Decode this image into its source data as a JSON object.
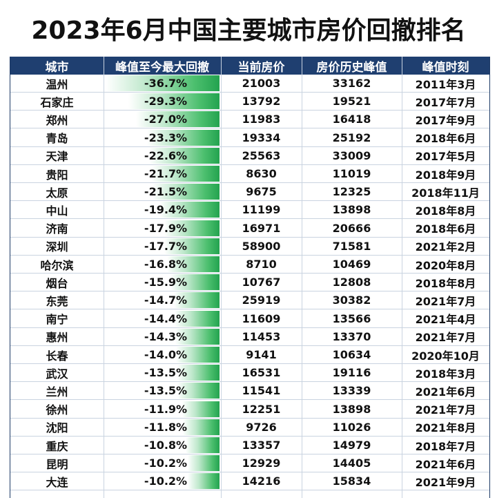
{
  "title": "2023年6月中国主要城市房价回撤排名",
  "headers": [
    "城市",
    "峰值至今最大回撤",
    "当前房价",
    "房价历史峰值",
    "峰值时刻"
  ],
  "chart_data": {
    "type": "table",
    "columns": [
      "城市",
      "峰值至今最大回撤",
      "当前房价",
      "房价历史峰值",
      "峰值时刻"
    ],
    "rows": [
      {
        "city": "温州",
        "drawdown": -36.7,
        "drawdown_label": "-36.7%",
        "current": "21003",
        "peak": "33162",
        "peak_time": "2011年3月"
      },
      {
        "city": "石家庄",
        "drawdown": -29.3,
        "drawdown_label": "-29.3%",
        "current": "13792",
        "peak": "19521",
        "peak_time": "2017年7月"
      },
      {
        "city": "郑州",
        "drawdown": -27.0,
        "drawdown_label": "-27.0%",
        "current": "11983",
        "peak": "16418",
        "peak_time": "2017年9月"
      },
      {
        "city": "青岛",
        "drawdown": -23.3,
        "drawdown_label": "-23.3%",
        "current": "19334",
        "peak": "25192",
        "peak_time": "2018年6月"
      },
      {
        "city": "天津",
        "drawdown": -22.6,
        "drawdown_label": "-22.6%",
        "current": "25563",
        "peak": "33009",
        "peak_time": "2017年5月"
      },
      {
        "city": "贵阳",
        "drawdown": -21.7,
        "drawdown_label": "-21.7%",
        "current": "8630",
        "peak": "11019",
        "peak_time": "2018年9月"
      },
      {
        "city": "太原",
        "drawdown": -21.5,
        "drawdown_label": "-21.5%",
        "current": "9675",
        "peak": "12325",
        "peak_time": "2018年11月"
      },
      {
        "city": "中山",
        "drawdown": -19.4,
        "drawdown_label": "-19.4%",
        "current": "11199",
        "peak": "13898",
        "peak_time": "2018年8月"
      },
      {
        "city": "济南",
        "drawdown": -17.9,
        "drawdown_label": "-17.9%",
        "current": "16971",
        "peak": "20666",
        "peak_time": "2018年6月"
      },
      {
        "city": "深圳",
        "drawdown": -17.7,
        "drawdown_label": "-17.7%",
        "current": "58900",
        "peak": "71581",
        "peak_time": "2021年2月"
      },
      {
        "city": "哈尔滨",
        "drawdown": -16.8,
        "drawdown_label": "-16.8%",
        "current": "8710",
        "peak": "10469",
        "peak_time": "2020年8月"
      },
      {
        "city": "烟台",
        "drawdown": -15.9,
        "drawdown_label": "-15.9%",
        "current": "10767",
        "peak": "12808",
        "peak_time": "2018年8月"
      },
      {
        "city": "东莞",
        "drawdown": -14.7,
        "drawdown_label": "-14.7%",
        "current": "25919",
        "peak": "30382",
        "peak_time": "2021年7月"
      },
      {
        "city": "南宁",
        "drawdown": -14.4,
        "drawdown_label": "-14.4%",
        "current": "11609",
        "peak": "13566",
        "peak_time": "2021年4月"
      },
      {
        "city": "惠州",
        "drawdown": -14.3,
        "drawdown_label": "-14.3%",
        "current": "11453",
        "peak": "13370",
        "peak_time": "2021年7月"
      },
      {
        "city": "长春",
        "drawdown": -14.0,
        "drawdown_label": "-14.0%",
        "current": "9141",
        "peak": "10634",
        "peak_time": "2020年10月"
      },
      {
        "city": "武汉",
        "drawdown": -13.5,
        "drawdown_label": "-13.5%",
        "current": "16531",
        "peak": "19116",
        "peak_time": "2018年3月"
      },
      {
        "city": "兰州",
        "drawdown": -13.5,
        "drawdown_label": "-13.5%",
        "current": "11541",
        "peak": "13339",
        "peak_time": "2021年6月"
      },
      {
        "city": "徐州",
        "drawdown": -11.9,
        "drawdown_label": "-11.9%",
        "current": "12251",
        "peak": "13898",
        "peak_time": "2021年7月"
      },
      {
        "city": "沈阳",
        "drawdown": -11.8,
        "drawdown_label": "-11.8%",
        "current": "9726",
        "peak": "11026",
        "peak_time": "2021年8月"
      },
      {
        "city": "重庆",
        "drawdown": -10.8,
        "drawdown_label": "-10.8%",
        "current": "13357",
        "peak": "14979",
        "peak_time": "2018年7月"
      },
      {
        "city": "昆明",
        "drawdown": -10.2,
        "drawdown_label": "-10.2%",
        "current": "12929",
        "peak": "14405",
        "peak_time": "2021年6月"
      },
      {
        "city": "大连",
        "drawdown": -10.2,
        "drawdown_label": "-10.2%",
        "current": "14216",
        "peak": "15834",
        "peak_time": "2021年9月"
      }
    ]
  },
  "colors": {
    "header_bg": "#1f3f70",
    "header_text": "#ffffff",
    "bar_green": "#23a34f",
    "grid": "#c9d3e0"
  }
}
